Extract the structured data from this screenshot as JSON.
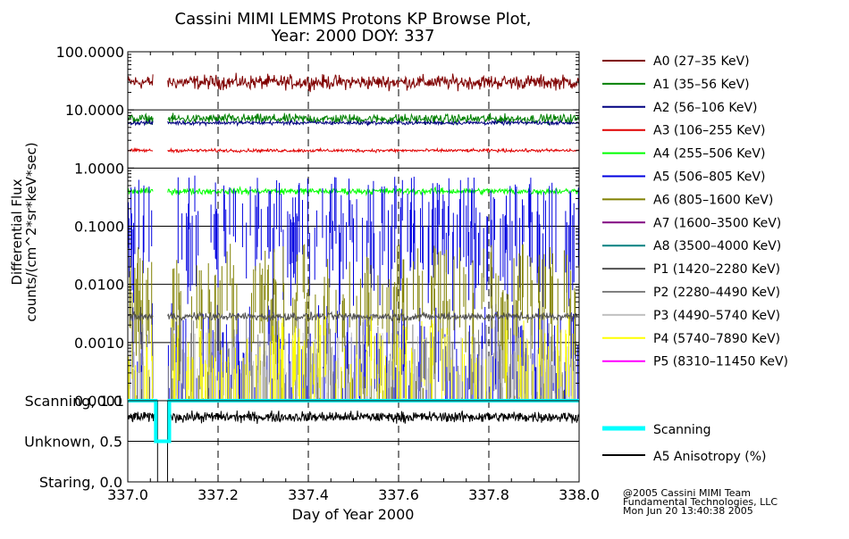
{
  "chart_data": [
    {
      "type": "line",
      "title": "Cassini MIMI LEMMS Protons KP Browse Plot,",
      "subtitle": "Year: 2000 DOY: 337",
      "ylabel_line1": "Differential Flux",
      "ylabel_line2": "counts/(cm^2*sr*keV*sec)",
      "yscale": "log",
      "xlim": [
        337.0,
        338.0
      ],
      "ylim": [
        0.0001,
        100.0
      ],
      "y_ticks": [
        {
          "value": 100,
          "label": "100.0000"
        },
        {
          "value": 10,
          "label": "10.0000"
        },
        {
          "value": 1,
          "label": "1.0000"
        },
        {
          "value": 0.1,
          "label": "0.1000"
        },
        {
          "value": 0.01,
          "label": "0.0100"
        },
        {
          "value": 0.001,
          "label": "0.0010"
        },
        {
          "value": 0.0001,
          "label": "0.0001"
        }
      ],
      "grid": true,
      "legend_position": "right",
      "data_gap": [
        337.057,
        337.088
      ],
      "series": [
        {
          "name": "A0 (27–35 KeV)",
          "color": "#800000",
          "base": 30,
          "spread": 0.18,
          "kind": "continuous"
        },
        {
          "name": "A1 (35–56 KeV)",
          "color": "#008000",
          "base": 7,
          "spread": 0.12,
          "kind": "continuous"
        },
        {
          "name": "A2 (56–106 KeV)",
          "color": "#000080",
          "base": 6,
          "spread": 0.05,
          "kind": "continuous"
        },
        {
          "name": "A3 (106–255 KeV)",
          "color": "#e00000",
          "base": 2,
          "spread": 0.04,
          "kind": "continuous"
        },
        {
          "name": "A4 (255–506 KeV)",
          "color": "#00ff00",
          "base": 0.4,
          "spread": 0.08,
          "kind": "continuous"
        },
        {
          "name": "A5 (506–805 KeV)",
          "color": "#0000e0",
          "base": 0.03,
          "spread": 0.6,
          "kind": "spiky"
        },
        {
          "name": "A6 (805–1600 KeV)",
          "color": "#808000",
          "base": 0.002,
          "spread": 0.6,
          "kind": "spiky"
        },
        {
          "name": "A7 (1600–3500 KeV)",
          "color": "#800080",
          "base": 0,
          "spread": 0,
          "kind": "none"
        },
        {
          "name": "A8 (3500–4000 KeV)",
          "color": "#008080",
          "base": 0,
          "spread": 0,
          "kind": "none"
        },
        {
          "name": "P1 (1420–2280 KeV)",
          "color": "#505050",
          "base": 0.0028,
          "spread": 0.1,
          "kind": "continuous"
        },
        {
          "name": "P2 (2280–4490 KeV)",
          "color": "#808080",
          "base": 0.0003,
          "spread": 0.5,
          "kind": "sparse"
        },
        {
          "name": "P3 (4490–5740 KeV)",
          "color": "#c0c0c0",
          "base": 0.00025,
          "spread": 0.4,
          "kind": "sparse"
        },
        {
          "name": "P4 (5740–7890 KeV)",
          "color": "#ffff00",
          "base": 0.0003,
          "spread": 0.5,
          "kind": "sparse"
        },
        {
          "name": "P5 (8310–11450 KeV)",
          "color": "#ff00ff",
          "base": 0,
          "spread": 0,
          "kind": "none"
        }
      ]
    },
    {
      "type": "line",
      "xlabel": "Day of Year 2000",
      "xlim": [
        337.0,
        338.0
      ],
      "ylim": [
        0.0,
        1.0
      ],
      "y_ticks": [
        {
          "value": 1.0,
          "label": "Scanning, 1.0"
        },
        {
          "value": 0.5,
          "label": "Unknown, 0.5"
        },
        {
          "value": 0.0,
          "label": "Staring, 0.0"
        }
      ],
      "x_ticks": [
        {
          "value": 337.0,
          "label": "337.0"
        },
        {
          "value": 337.2,
          "label": "337.2"
        },
        {
          "value": 337.4,
          "label": "337.4"
        },
        {
          "value": 337.6,
          "label": "337.6"
        },
        {
          "value": 337.8,
          "label": "337.8"
        },
        {
          "value": 338.0,
          "label": "338.0"
        }
      ],
      "grid": true,
      "legend_position": "right",
      "series": [
        {
          "name": "Scanning",
          "color": "#00ffff",
          "kind": "step",
          "steps": [
            [
              337.0,
              1.0
            ],
            [
              337.062,
              1.0
            ],
            [
              337.062,
              0.5
            ],
            [
              337.092,
              0.5
            ],
            [
              337.092,
              1.0
            ],
            [
              338.0,
              1.0
            ]
          ]
        },
        {
          "name": "A5 Anisotropy (%)",
          "color": "#000000",
          "kind": "noise",
          "base": 0.8,
          "spread": 0.06
        }
      ]
    }
  ],
  "credits": [
    "@2005 Cassini MIMI Team",
    "Fundamental Technologies, LLC",
    "Mon Jun 20 13:40:38 2005"
  ]
}
